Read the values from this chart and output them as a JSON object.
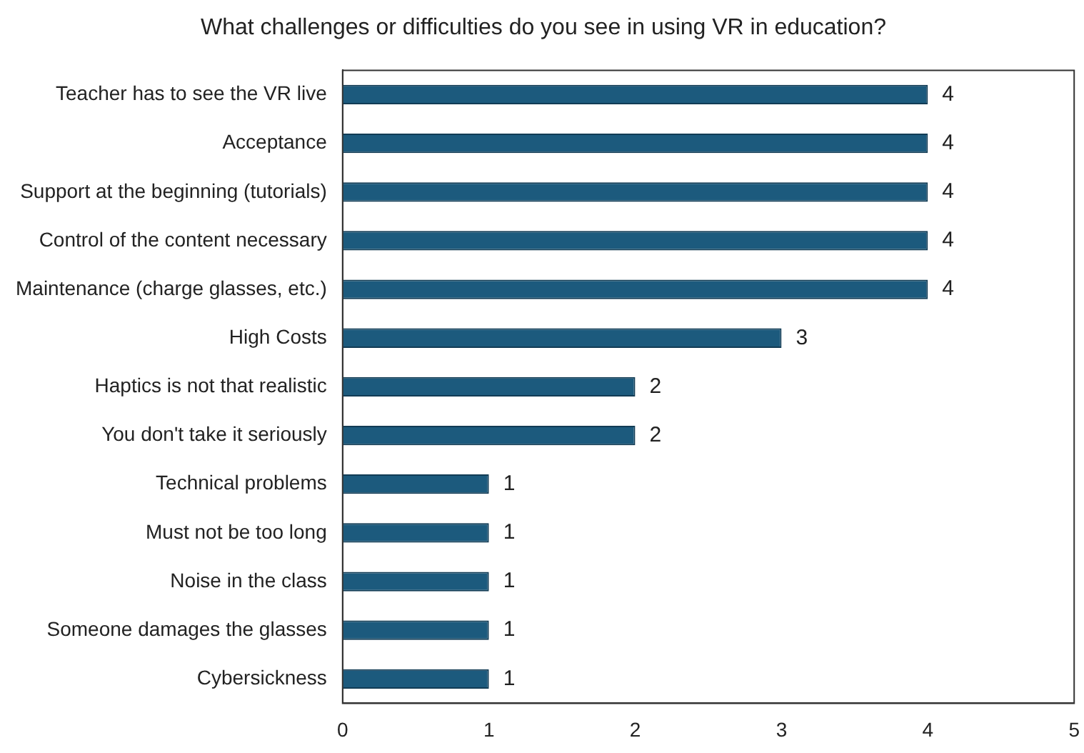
{
  "chart_data": {
    "type": "bar",
    "orientation": "horizontal",
    "title": "What challenges or difficulties do you see in using VR in education?",
    "categories": [
      "Teacher has to see the VR live",
      "Acceptance",
      "Support at the beginning (tutorials)",
      "Control of the content necessary",
      "Maintenance (charge glasses, etc.)",
      "High Costs",
      "Haptics is not that realistic",
      "You don't take it seriously",
      "Technical problems",
      "Must not be too long",
      "Noise in the class",
      "Someone damages the glasses",
      "Cybersickness"
    ],
    "values": [
      4,
      4,
      4,
      4,
      4,
      3,
      2,
      2,
      1,
      1,
      1,
      1,
      1
    ],
    "color": "#1c5a7d",
    "xlim": [
      0,
      5
    ],
    "xticks": [
      0,
      1,
      2,
      3,
      4,
      5
    ],
    "grid": false,
    "legend": false,
    "data_labels": true
  }
}
